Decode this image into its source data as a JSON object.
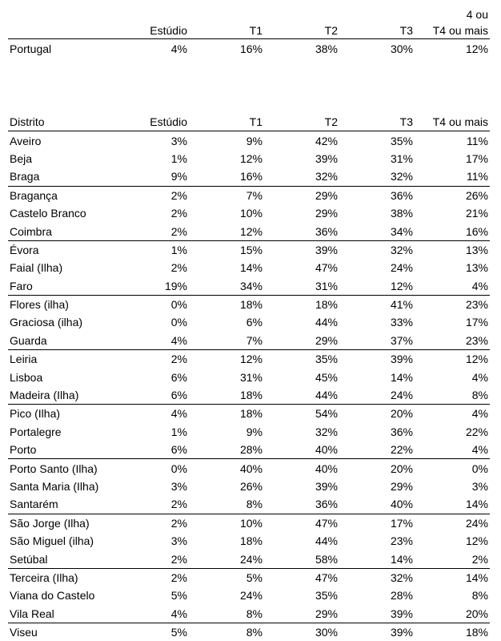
{
  "summary": {
    "header_line1": [
      "",
      "",
      "",
      "",
      "",
      "4 ou"
    ],
    "header_line2": [
      "",
      "Estúdio",
      "T1",
      "T2",
      "T3",
      "T4 ou mais"
    ],
    "row": [
      "Portugal",
      "4%",
      "16%",
      "38%",
      "30%",
      "12%"
    ]
  },
  "districts": {
    "headers": [
      "Distrito",
      "Estúdio",
      "T1",
      "T2",
      "T3",
      "T4 ou mais"
    ],
    "rows": [
      [
        "Aveiro",
        "3%",
        "9%",
        "42%",
        "35%",
        "11%"
      ],
      [
        "Beja",
        "1%",
        "12%",
        "39%",
        "31%",
        "17%"
      ],
      [
        "Braga",
        "9%",
        "16%",
        "32%",
        "32%",
        "11%"
      ],
      [
        "Bragança",
        "2%",
        "7%",
        "29%",
        "36%",
        "26%"
      ],
      [
        "Castelo Branco",
        "2%",
        "10%",
        "29%",
        "38%",
        "21%"
      ],
      [
        "Coimbra",
        "2%",
        "12%",
        "36%",
        "34%",
        "16%"
      ],
      [
        "Évora",
        "1%",
        "15%",
        "39%",
        "32%",
        "13%"
      ],
      [
        "Faial (Ilha)",
        "2%",
        "14%",
        "47%",
        "24%",
        "13%"
      ],
      [
        "Faro",
        "19%",
        "34%",
        "31%",
        "12%",
        "4%"
      ],
      [
        "Flores (ilha)",
        "0%",
        "18%",
        "18%",
        "41%",
        "23%"
      ],
      [
        "Graciosa (ilha)",
        "0%",
        "6%",
        "44%",
        "33%",
        "17%"
      ],
      [
        "Guarda",
        "4%",
        "7%",
        "29%",
        "37%",
        "23%"
      ],
      [
        "Leiria",
        "2%",
        "12%",
        "35%",
        "39%",
        "12%"
      ],
      [
        "Lisboa",
        "6%",
        "31%",
        "45%",
        "14%",
        "4%"
      ],
      [
        "Madeira (Ilha)",
        "6%",
        "18%",
        "44%",
        "24%",
        "8%"
      ],
      [
        "Pico (Ilha)",
        "4%",
        "18%",
        "54%",
        "20%",
        "4%"
      ],
      [
        "Portalegre",
        "1%",
        "9%",
        "32%",
        "36%",
        "22%"
      ],
      [
        "Porto",
        "6%",
        "28%",
        "40%",
        "22%",
        "4%"
      ],
      [
        "Porto Santo (Ilha)",
        "0%",
        "40%",
        "40%",
        "20%",
        "0%"
      ],
      [
        "Santa Maria (Ilha)",
        "3%",
        "26%",
        "39%",
        "29%",
        "3%"
      ],
      [
        "Santarém",
        "2%",
        "8%",
        "36%",
        "40%",
        "14%"
      ],
      [
        "São Jorge (Ilha)",
        "2%",
        "10%",
        "47%",
        "17%",
        "24%"
      ],
      [
        "São Miguel (ilha)",
        "3%",
        "18%",
        "44%",
        "23%",
        "12%"
      ],
      [
        "Setúbal",
        "2%",
        "24%",
        "58%",
        "14%",
        "2%"
      ],
      [
        "Terceira (Ilha)",
        "2%",
        "5%",
        "47%",
        "32%",
        "14%"
      ],
      [
        "Viana do Castelo",
        "5%",
        "24%",
        "35%",
        "28%",
        "8%"
      ],
      [
        "Vila Real",
        "4%",
        "8%",
        "29%",
        "39%",
        "20%"
      ],
      [
        "Viseu",
        "5%",
        "8%",
        "30%",
        "39%",
        "18%"
      ]
    ]
  }
}
